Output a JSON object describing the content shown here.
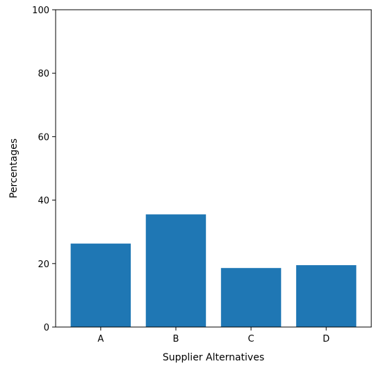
{
  "chart_data": {
    "type": "bar",
    "categories": [
      "A",
      "B",
      "C",
      "D"
    ],
    "values": [
      26.3,
      35.5,
      18.6,
      19.5
    ],
    "title": "",
    "xlabel": "Supplier Alternatives",
    "ylabel": "Percentages",
    "ylim": [
      0,
      100
    ],
    "yticks": [
      0,
      20,
      40,
      60,
      80,
      100
    ],
    "grid": false,
    "legend": "none",
    "bar_color": "#1f77b4"
  }
}
